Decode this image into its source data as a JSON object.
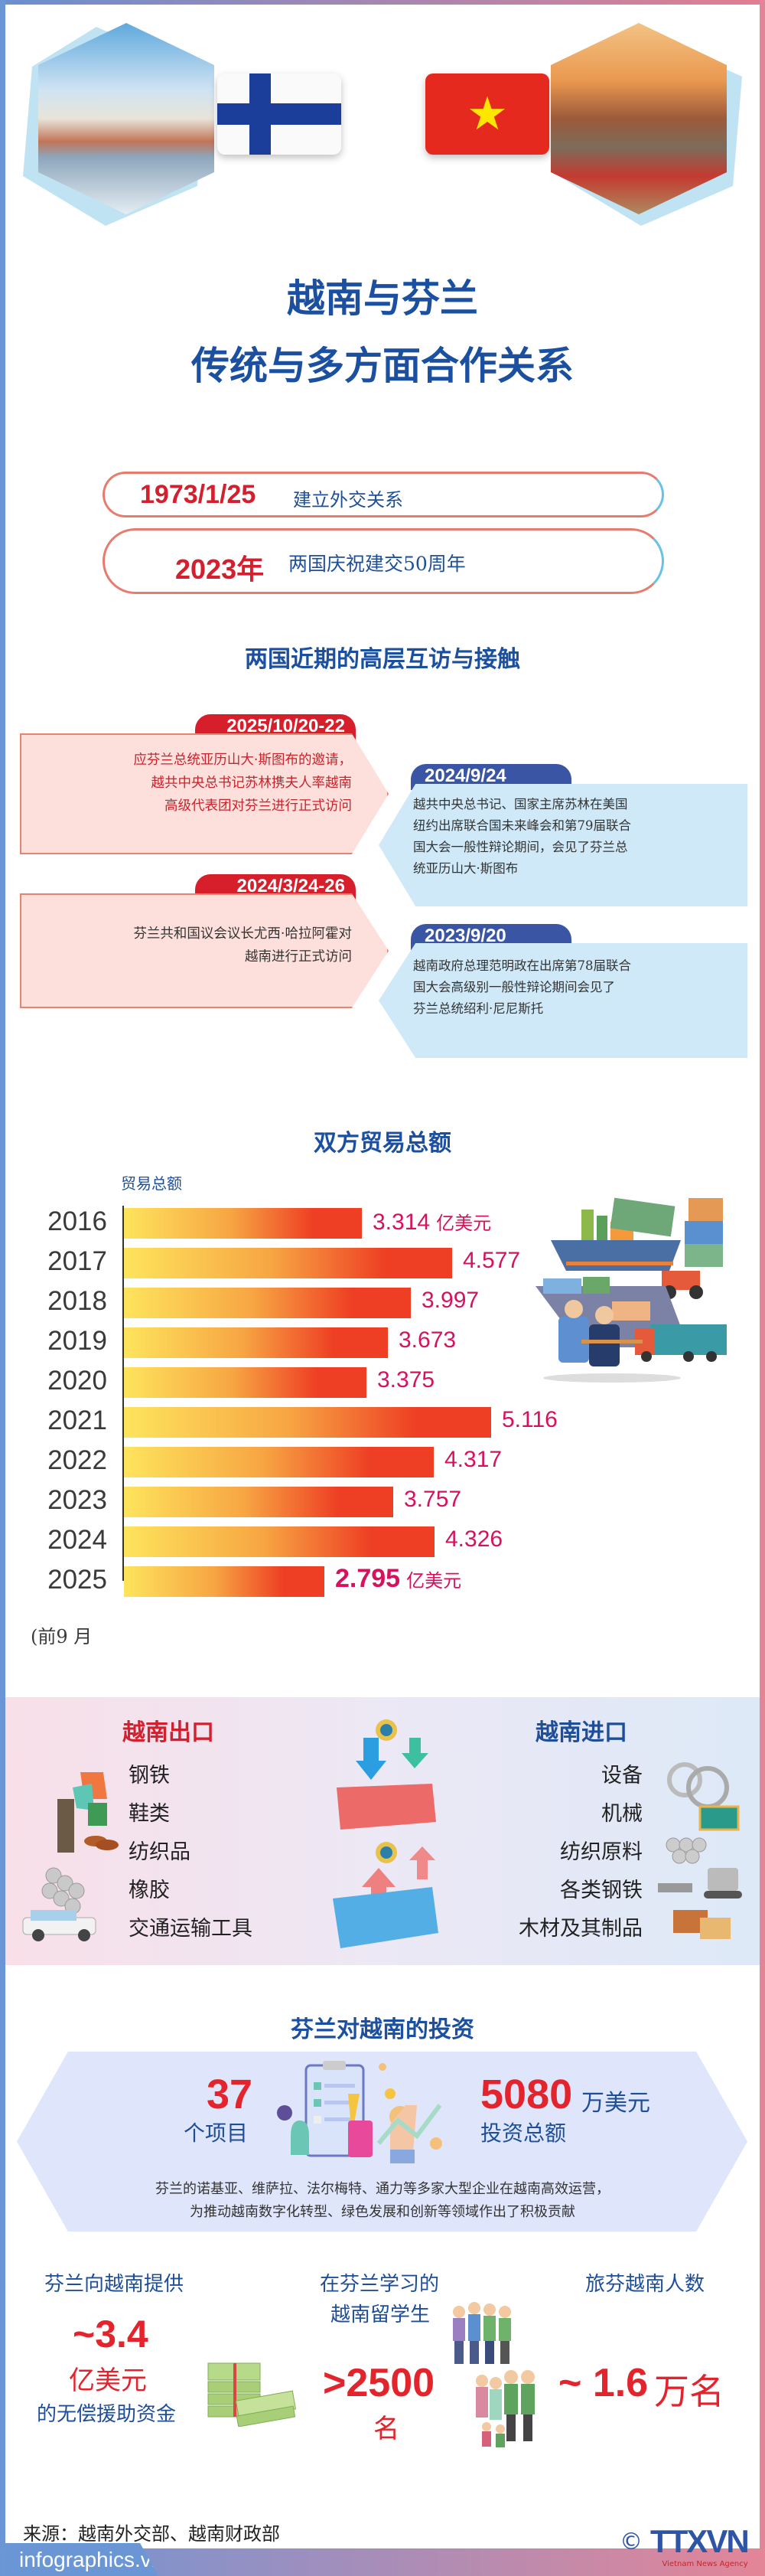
{
  "header": {
    "left_photo": "helsinki-cityscape",
    "right_photo": "ho-chi-minh-city-skyline",
    "flag_left": "finland-flag",
    "flag_right": "vietnam-flag",
    "vn_star": "★"
  },
  "title": {
    "line1": "越南与芬兰",
    "line2": "传统与多方面合作关系"
  },
  "milestones": [
    {
      "date": "1973/1/25",
      "desc": "建立外交关系"
    },
    {
      "date": "2023年",
      "desc": "两国庆祝建交50周年"
    }
  ],
  "visits": {
    "title": "两国近期的高层互访与接触",
    "items": [
      {
        "date": "2025/10/20-22",
        "lines": [
          "应芬兰总统亚历山大·斯图布的邀请，",
          "越共中央总书记苏林携夫人率越南",
          "高级代表团对芬兰进行正式访问"
        ]
      },
      {
        "date": "2024/9/24",
        "lines": [
          "越共中央总书记、国家主席苏林在美国",
          "纽约出席联合国未来峰会和第79届联合",
          "国大会一般性辩论期间，会见了芬兰总",
          "统亚历山大·斯图布"
        ]
      },
      {
        "date": "2024/3/24-26",
        "lines": [
          "芬兰共和国议会议长尤西·哈拉阿霍对",
          "越南进行正式访问"
        ]
      },
      {
        "date": "2023/9/20",
        "lines": [
          "越南政府总理范明政在出席第78届联合",
          "国大会高级别一般性辩论期间会见了",
          "芬兰总统绍利·尼尼斯托"
        ]
      }
    ]
  },
  "trade": {
    "title": "双方贸易总额",
    "axis_label": "贸易总额",
    "unit": "亿美元",
    "footnote": "(前9 月",
    "illustration": "trade-shipping-illustration"
  },
  "chart_data": {
    "type": "bar",
    "orientation": "horizontal",
    "title": "双方贸易总额",
    "ylabel": "贸易总额",
    "unit": "亿美元",
    "categories": [
      "2016",
      "2017",
      "2018",
      "2019",
      "2020",
      "2021",
      "2022",
      "2023",
      "2024",
      "2025 (前9月)"
    ],
    "values": [
      3.314,
      4.577,
      3.997,
      3.673,
      3.375,
      5.116,
      4.317,
      3.757,
      4.326,
      2.795
    ],
    "value_labels": [
      "3.314",
      "4.577",
      "3.997",
      "3.673",
      "3.375",
      "5.116",
      "4.317",
      "3.757",
      "4.326",
      "2.795"
    ],
    "grid": false,
    "legend": null
  },
  "exports": {
    "title": "越南出口",
    "items": [
      "钢铁",
      "鞋类",
      "纺织品",
      "橡胶",
      "交通运输工具"
    ]
  },
  "imports": {
    "title": "越南进口",
    "items": [
      "设备",
      "机械",
      "纺织原料",
      "各类钢铁",
      "木材及其制品"
    ]
  },
  "investment": {
    "title": "芬兰对越南的投资",
    "projects_value": "37",
    "projects_label": "个项目",
    "capital_value": "5080",
    "capital_unit": "万美元",
    "capital_label": "投资总额",
    "desc_line1": "芬兰的诺基亚、维萨拉、法尔梅特、通力等多家大型企业在越南高效运营，",
    "desc_line2": "为推动越南数字化转型、绿色发展和创新等领域作出了积极贡献"
  },
  "stats": {
    "aid": {
      "caption": "芬兰向越南提供",
      "value": "~3.4",
      "unit": "亿美元",
      "sub": "的无偿援助资金"
    },
    "students": {
      "caption1": "在芬兰学习的",
      "caption2": "越南留学生",
      "value": ">2500",
      "unit": "名"
    },
    "community": {
      "caption": "旅芬越南人数",
      "value": "~ 1.6",
      "unit": "万名"
    }
  },
  "footer": {
    "source": "来源：越南外交部、越南财政部",
    "site": "infographics.vn",
    "copyright": "©",
    "logo": "TTXVN",
    "logo_sub": "Vietnam News Agency"
  }
}
